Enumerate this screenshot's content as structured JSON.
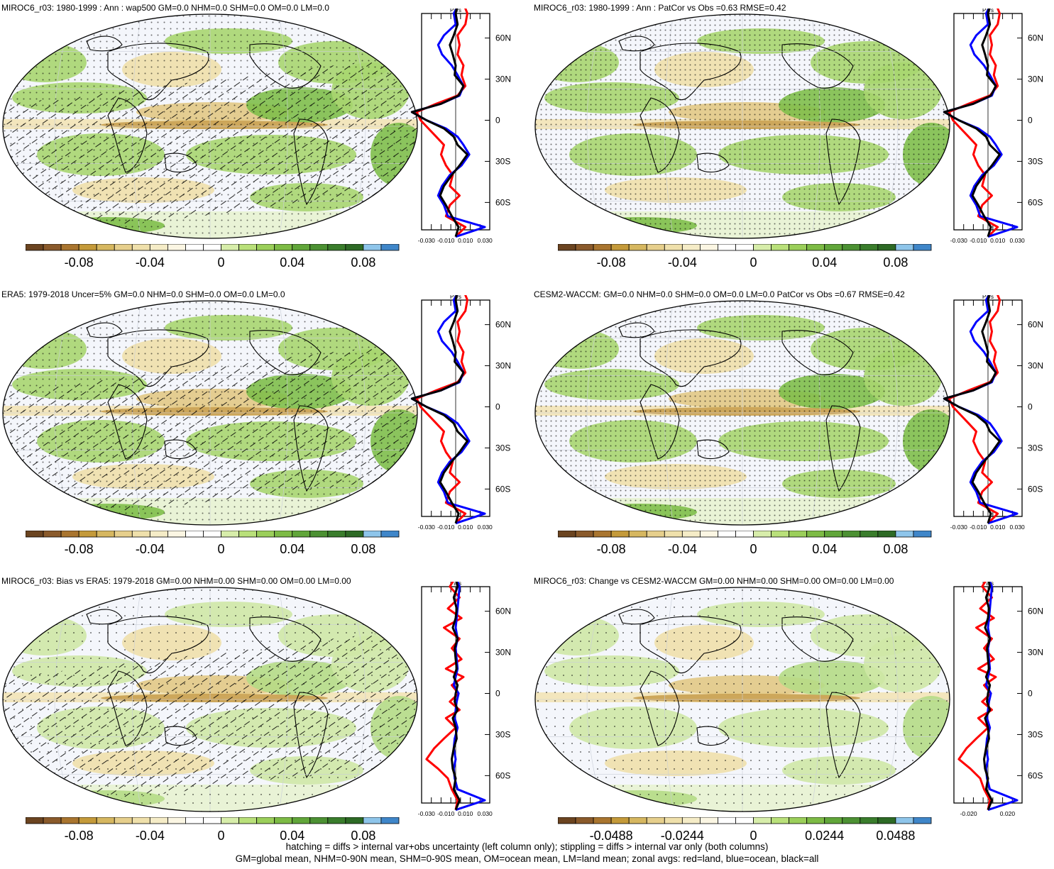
{
  "colors": {
    "colorbar": [
      "#6b4420",
      "#8a5a2b",
      "#a9752f",
      "#c49a3a",
      "#d6b760",
      "#e6cf8c",
      "#efe0ab",
      "#f5ecc7",
      "#fbf6e3",
      "#ffffff",
      "#ffffff",
      "#d7edaa",
      "#b9e07a",
      "#9bcf5a",
      "#7dbb45",
      "#61a63a",
      "#4c9133",
      "#3a7d2c",
      "#2d6a25",
      "#8ec5ea",
      "#3f86c9"
    ],
    "land_line": "#ff0000",
    "ocean_line": "#0000ff",
    "all_line": "#000000",
    "map_bg": "#f4f6fb"
  },
  "panels": [
    {
      "title": "MIROC6_r03: 1980-1999 : Ann : wap500 GM=0.0 NHM=0.0 SHM=0.0 OM=0.0 LM=0.0",
      "hatching": true,
      "stipple_density": "medium",
      "green_strength": 0.9,
      "zonal_xticks": [
        "-0.030",
        "-0.010",
        "0.010",
        "0.030"
      ],
      "colorbar_labels": [
        "-0.08",
        "-0.04",
        "0",
        "0.04",
        "0.08"
      ]
    },
    {
      "title": "MIROC6_r03: 1980-1999 : Ann : PatCor vs Obs =0.63 RMSE=0.42",
      "hatching": false,
      "stipple_density": "dense",
      "green_strength": 0.9,
      "zonal_xticks": [
        "-0.030",
        "-0.010",
        "0.010",
        "0.030"
      ],
      "colorbar_labels": [
        "-0.08",
        "-0.04",
        "0",
        "0.04",
        "0.08"
      ]
    },
    {
      "title": "ERA5: 1979-2018 Uncer=5% GM=0.0 NHM=0.0 SHM=0.0 OM=0.0 LM=0.0",
      "hatching": true,
      "stipple_density": "medium",
      "green_strength": 1.0,
      "zonal_xticks": [
        "-0.030",
        "-0.010",
        "0.010",
        "0.030"
      ],
      "colorbar_labels": [
        "-0.08",
        "-0.04",
        "0",
        "0.04",
        "0.08"
      ]
    },
    {
      "title": "CESM2-WACCM: GM=0.0 NHM=0.0 SHM=0.0 OM=0.0 LM=0.0 PatCor vs Obs =0.67 RMSE=0.42",
      "hatching": false,
      "stipple_density": "dense",
      "green_strength": 1.0,
      "zonal_xticks": [
        "-0.030",
        "-0.010",
        "0.010",
        "0.030"
      ],
      "colorbar_labels": [
        "-0.08",
        "-0.04",
        "0",
        "0.04",
        "0.08"
      ]
    },
    {
      "title": "MIROC6_r03: Bias vs ERA5: 1979-2018 GM=0.00 NHM=0.00 SHM=0.00 OM=0.00 LM=0.00",
      "hatching": true,
      "stipple_density": "sparse",
      "green_strength": 0.45,
      "zonal_xticks": [
        "-0.030",
        "-0.010",
        "0.010",
        "0.030"
      ],
      "colorbar_labels": [
        "-0.08",
        "-0.04",
        "0",
        "0.04",
        "0.08"
      ]
    },
    {
      "title": "MIROC6_r03: Change vs CESM2-WACCM GM=0.00 NHM=0.00 SHM=0.00 OM=0.00 LM=0.00",
      "hatching": false,
      "stipple_density": "sparse",
      "green_strength": 0.5,
      "zonal_xticks": [
        "-0.020",
        "0.020"
      ],
      "colorbar_labels": [
        "-0.0488",
        "-0.0244",
        "0",
        "0.0244",
        "0.0488"
      ]
    }
  ],
  "chart_data": {
    "type": "map-with-zonal-profiles",
    "zonal_axis_unit": "Pa/s",
    "lat_ticks": [
      "60N",
      "30N",
      "0",
      "30S",
      "60S"
    ],
    "lat_values": [
      60,
      30,
      0,
      -30,
      -60
    ],
    "series_names_legend": [
      "red=land",
      "blue=ocean",
      "black=all"
    ],
    "zonal_profiles": {
      "lat": [
        85,
        78,
        70,
        62,
        55,
        48,
        40,
        33,
        25,
        18,
        12,
        6,
        0,
        -6,
        -12,
        -18,
        -25,
        -33,
        -40,
        -48,
        -55,
        -62,
        -70,
        -78,
        -85
      ],
      "main": {
        "all": [
          0.002,
          0.0,
          0.002,
          -0.002,
          -0.006,
          -0.003,
          0.0,
          -0.001,
          0.008,
          0.003,
          -0.015,
          -0.045,
          -0.03,
          -0.012,
          -0.002,
          0.002,
          0.012,
          0.004,
          -0.004,
          -0.012,
          -0.016,
          -0.01,
          -0.004,
          0.003,
          0.0
        ],
        "land": [
          0.008,
          0.012,
          0.01,
          0.002,
          0.004,
          0.002,
          0.008,
          0.006,
          0.01,
          0.002,
          -0.02,
          -0.04,
          -0.036,
          -0.028,
          -0.02,
          -0.012,
          -0.015,
          -0.01,
          -0.003,
          -0.006,
          0.004,
          -0.006,
          -0.01,
          0.01,
          0.0
        ],
        "ocean": [
          0.004,
          -0.002,
          0.0,
          -0.012,
          -0.018,
          -0.014,
          -0.004,
          0.002,
          0.008,
          0.004,
          -0.015,
          -0.045,
          -0.03,
          -0.01,
          0.002,
          0.008,
          0.014,
          0.006,
          -0.006,
          -0.014,
          -0.018,
          -0.012,
          -0.008,
          0.03,
          0.0
        ]
      },
      "diff": {
        "all": [
          0.0,
          0.002,
          -0.002,
          0.001,
          0.0,
          -0.003,
          0.002,
          -0.001,
          0.0,
          0.001,
          -0.002,
          0.002,
          0.0,
          -0.001,
          0.002,
          -0.003,
          0.0,
          0.001,
          -0.002,
          -0.004,
          -0.003,
          0.0,
          -0.002,
          0.004,
          0.0
        ],
        "land": [
          0.0,
          -0.006,
          0.004,
          -0.008,
          0.006,
          -0.012,
          0.004,
          -0.004,
          0.006,
          -0.01,
          0.008,
          -0.004,
          0.003,
          -0.006,
          0.004,
          -0.01,
          0.0,
          -0.012,
          -0.022,
          -0.03,
          -0.018,
          -0.008,
          -0.004,
          0.002,
          0.0
        ],
        "ocean": [
          0.0,
          0.004,
          0.003,
          0.002,
          0.001,
          0.0,
          0.002,
          0.0,
          0.001,
          0.002,
          0.0,
          -0.002,
          0.003,
          0.001,
          0.0,
          -0.001,
          0.002,
          -0.001,
          -0.002,
          0.0,
          -0.002,
          -0.001,
          0.002,
          0.03,
          0.0
        ]
      }
    }
  },
  "footer": {
    "line1": "hatching = diffs > internal var+obs uncertainty (left column only); stippling = diffs > internal var only (both columns)",
    "line2": "GM=global mean, NHM=0-90N mean, SHM=0-90S mean, OM=ocean mean, LM=land mean; zonal avgs: red=land, blue=ocean, black=all"
  },
  "zonal_unit_label": "Pa/s"
}
